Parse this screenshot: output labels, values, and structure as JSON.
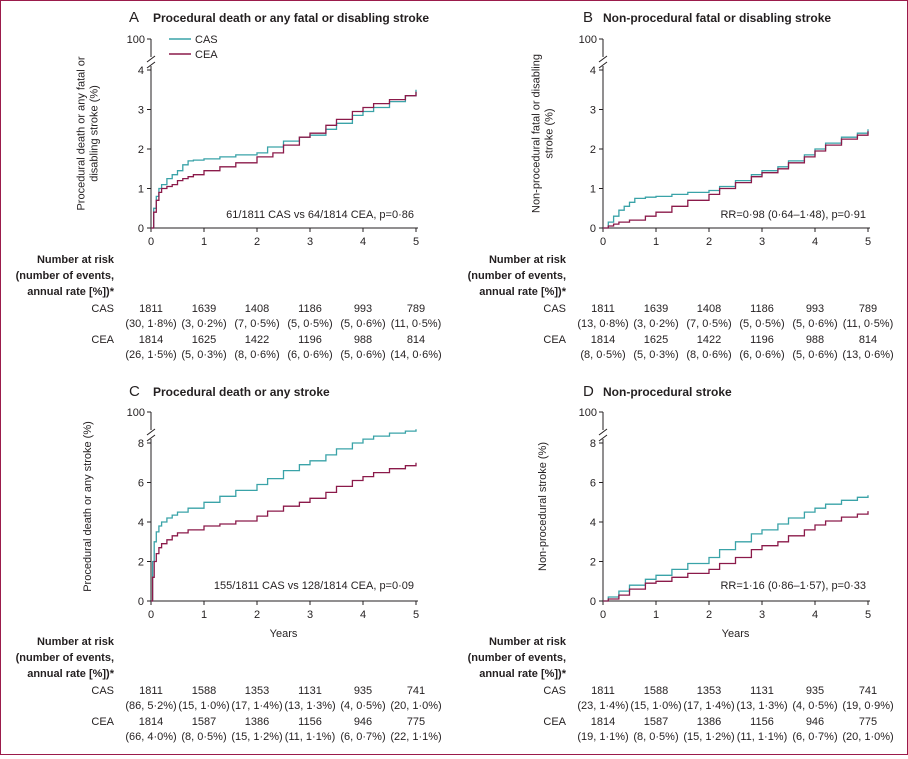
{
  "colors": {
    "CAS": "#3aa3a8",
    "CEA": "#8b1a4a",
    "border": "#9b1b4b"
  },
  "chart_data": [
    {
      "type": "line",
      "panel": "A",
      "title": "Procedural death or any fatal or disabling stroke",
      "ylabel": [
        "Procedural death or any fatal or",
        "disabling stroke (%)"
      ],
      "xlabel": "",
      "ylim": [
        0,
        4
      ],
      "yticks": [
        "0",
        "1",
        "2",
        "3",
        "4"
      ],
      "ybreak_label": "100",
      "xlim": [
        0,
        5
      ],
      "xticks": [
        "0",
        "1",
        "2",
        "3",
        "4",
        "5"
      ],
      "legend": [
        "CAS",
        "CEA"
      ],
      "annotation": "61/1811 CAS vs 64/1814 CEA, p=0·86",
      "series": [
        {
          "name": "CAS",
          "x": [
            0,
            0.05,
            0.1,
            0.15,
            0.2,
            0.3,
            0.4,
            0.5,
            0.6,
            0.7,
            0.8,
            1.0,
            1.3,
            1.6,
            2.0,
            2.2,
            2.5,
            2.8,
            3.0,
            3.3,
            3.5,
            3.8,
            4.0,
            4.2,
            4.5,
            4.8,
            5.0
          ],
          "y": [
            0,
            0.5,
            0.8,
            1.0,
            1.1,
            1.25,
            1.35,
            1.45,
            1.6,
            1.7,
            1.72,
            1.75,
            1.8,
            1.85,
            1.9,
            2.05,
            2.2,
            2.3,
            2.35,
            2.5,
            2.65,
            2.85,
            2.95,
            3.05,
            3.2,
            3.35,
            3.5
          ]
        },
        {
          "name": "CEA",
          "x": [
            0,
            0.05,
            0.1,
            0.15,
            0.2,
            0.3,
            0.4,
            0.5,
            0.6,
            0.7,
            0.8,
            1.0,
            1.3,
            1.6,
            2.0,
            2.3,
            2.5,
            2.8,
            3.0,
            3.3,
            3.5,
            3.8,
            4.0,
            4.2,
            4.5,
            4.8,
            5.0
          ],
          "y": [
            0,
            0.4,
            0.7,
            0.9,
            1.0,
            1.05,
            1.1,
            1.2,
            1.25,
            1.3,
            1.35,
            1.45,
            1.55,
            1.65,
            1.8,
            1.9,
            2.1,
            2.3,
            2.4,
            2.6,
            2.75,
            2.95,
            3.05,
            3.15,
            3.25,
            3.35,
            3.45
          ]
        }
      ],
      "risk": {
        "header": [
          "Number at risk",
          "(number of events,",
          "annual rate [%])*"
        ],
        "rows": [
          {
            "group": "CAS",
            "counts": [
              "1811",
              "1639",
              "1408",
              "1186",
              "993",
              "789"
            ],
            "events": [
              "(30, 1·8%)",
              "(3, 0·2%)",
              "(7, 0·5%)",
              "(5, 0·5%)",
              "(5, 0·6%)",
              "(11, 0·5%)"
            ]
          },
          {
            "group": "CEA",
            "counts": [
              "1814",
              "1625",
              "1422",
              "1196",
              "988",
              "814"
            ],
            "events": [
              "(26, 1·5%)",
              "(5, 0·3%)",
              "(8, 0·6%)",
              "(6, 0·6%)",
              "(5, 0·6%)",
              "(14, 0·6%)"
            ]
          }
        ]
      }
    },
    {
      "type": "line",
      "panel": "B",
      "title": "Non-procedural fatal or disabling stroke",
      "ylabel": [
        "Non-procedural fatal or disabling",
        "stroke (%)"
      ],
      "xlabel": "",
      "ylim": [
        0,
        4
      ],
      "yticks": [
        "0",
        "1",
        "2",
        "3",
        "4"
      ],
      "ybreak_label": "100",
      "xlim": [
        0,
        5
      ],
      "xticks": [
        "0",
        "1",
        "2",
        "3",
        "4",
        "5"
      ],
      "legend": [],
      "annotation": "RR=0·98 (0·64–1·48), p=0·91",
      "series": [
        {
          "name": "CAS",
          "x": [
            0,
            0.1,
            0.2,
            0.3,
            0.4,
            0.5,
            0.6,
            0.8,
            1.0,
            1.3,
            1.6,
            2.0,
            2.2,
            2.5,
            2.8,
            3.0,
            3.3,
            3.5,
            3.8,
            4.0,
            4.2,
            4.5,
            4.8,
            5.0
          ],
          "y": [
            0,
            0.15,
            0.3,
            0.45,
            0.55,
            0.65,
            0.75,
            0.78,
            0.8,
            0.85,
            0.9,
            0.95,
            1.05,
            1.2,
            1.35,
            1.45,
            1.55,
            1.7,
            1.85,
            2.0,
            2.15,
            2.3,
            2.4,
            2.5
          ]
        },
        {
          "name": "CEA",
          "x": [
            0,
            0.1,
            0.2,
            0.3,
            0.5,
            0.8,
            1.0,
            1.3,
            1.6,
            2.0,
            2.2,
            2.5,
            2.8,
            3.0,
            3.3,
            3.5,
            3.8,
            4.0,
            4.2,
            4.5,
            4.8,
            5.0
          ],
          "y": [
            0,
            0.05,
            0.1,
            0.15,
            0.2,
            0.3,
            0.4,
            0.55,
            0.7,
            0.85,
            1.0,
            1.15,
            1.3,
            1.4,
            1.5,
            1.65,
            1.8,
            1.95,
            2.1,
            2.25,
            2.35,
            2.45
          ]
        }
      ],
      "risk": {
        "header": [
          "Number at risk",
          "(number of events,",
          "annual rate [%])*"
        ],
        "rows": [
          {
            "group": "CAS",
            "counts": [
              "1811",
              "1639",
              "1408",
              "1186",
              "993",
              "789"
            ],
            "events": [
              "(13, 0·8%)",
              "(3, 0·2%)",
              "(7, 0·5%)",
              "(5, 0·5%)",
              "(5, 0·6%)",
              "(11, 0·5%)"
            ]
          },
          {
            "group": "CEA",
            "counts": [
              "1814",
              "1625",
              "1422",
              "1196",
              "988",
              "814"
            ],
            "events": [
              "(8, 0·5%)",
              "(5, 0·3%)",
              "(8, 0·6%)",
              "(6, 0·6%)",
              "(5, 0·6%)",
              "(13, 0·6%)"
            ]
          }
        ]
      }
    },
    {
      "type": "line",
      "panel": "C",
      "title": "Procedural death or any stroke",
      "ylabel": [
        "Procedural death or any stroke (%)"
      ],
      "xlabel": "Years",
      "ylim": [
        0,
        8
      ],
      "yticks": [
        "0",
        "2",
        "4",
        "6",
        "8"
      ],
      "ybreak_label": "100",
      "xlim": [
        0,
        5
      ],
      "xticks": [
        "0",
        "1",
        "2",
        "3",
        "4",
        "5"
      ],
      "legend": [],
      "annotation": "155/1811 CAS vs 128/1814 CEA, p=0·09",
      "series": [
        {
          "name": "CAS",
          "x": [
            0,
            0.03,
            0.06,
            0.1,
            0.15,
            0.2,
            0.3,
            0.4,
            0.5,
            0.7,
            1.0,
            1.3,
            1.6,
            2.0,
            2.2,
            2.5,
            2.8,
            3.0,
            3.3,
            3.5,
            3.8,
            4.0,
            4.2,
            4.5,
            4.8,
            5.0
          ],
          "y": [
            0,
            2.0,
            3.0,
            3.5,
            3.8,
            4.0,
            4.2,
            4.35,
            4.5,
            4.7,
            5.0,
            5.3,
            5.6,
            5.9,
            6.2,
            6.6,
            6.9,
            7.1,
            7.4,
            7.7,
            8.0,
            8.2,
            8.35,
            8.5,
            8.6,
            8.7
          ]
        },
        {
          "name": "CEA",
          "x": [
            0,
            0.03,
            0.06,
            0.1,
            0.15,
            0.2,
            0.3,
            0.4,
            0.5,
            0.7,
            1.0,
            1.3,
            1.6,
            2.0,
            2.2,
            2.5,
            2.8,
            3.0,
            3.3,
            3.5,
            3.8,
            4.0,
            4.2,
            4.5,
            4.8,
            5.0
          ],
          "y": [
            0,
            1.2,
            2.0,
            2.4,
            2.7,
            2.9,
            3.1,
            3.3,
            3.45,
            3.6,
            3.8,
            3.9,
            4.05,
            4.3,
            4.55,
            4.8,
            5.0,
            5.2,
            5.5,
            5.8,
            6.1,
            6.3,
            6.5,
            6.7,
            6.85,
            7.0
          ]
        }
      ],
      "risk": {
        "header": [
          "Number at risk",
          "(number of events,",
          "annual rate [%])*"
        ],
        "rows": [
          {
            "group": "CAS",
            "counts": [
              "1811",
              "1588",
              "1353",
              "1131",
              "935",
              "741"
            ],
            "events": [
              "(86, 5·2%)",
              "(15, 1·0%)",
              "(17, 1·4%)",
              "(13, 1·3%)",
              "(4, 0·5%)",
              "(20, 1·0%)"
            ]
          },
          {
            "group": "CEA",
            "counts": [
              "1814",
              "1587",
              "1386",
              "1156",
              "946",
              "775"
            ],
            "events": [
              "(66, 4·0%)",
              "(8, 0·5%)",
              "(15, 1·2%)",
              "(11, 1·1%)",
              "(6, 0·7%)",
              "(22, 1·1%)"
            ]
          }
        ]
      }
    },
    {
      "type": "line",
      "panel": "D",
      "title": "Non-procedural stroke",
      "ylabel": [
        "Non-procedural stroke (%)"
      ],
      "xlabel": "Years",
      "ylim": [
        0,
        8
      ],
      "yticks": [
        "0",
        "2",
        "4",
        "6",
        "8"
      ],
      "ybreak_label": "100",
      "xlim": [
        0,
        5
      ],
      "xticks": [
        "0",
        "1",
        "2",
        "3",
        "4",
        "5"
      ],
      "legend": [],
      "annotation": "RR=1·16 (0·86–1·57), p=0·33",
      "series": [
        {
          "name": "CAS",
          "x": [
            0,
            0.1,
            0.3,
            0.5,
            0.8,
            1.0,
            1.3,
            1.6,
            2.0,
            2.2,
            2.5,
            2.8,
            3.0,
            3.3,
            3.5,
            3.8,
            4.0,
            4.2,
            4.5,
            4.8,
            5.0
          ],
          "y": [
            0,
            0.2,
            0.5,
            0.8,
            1.1,
            1.3,
            1.6,
            1.9,
            2.2,
            2.6,
            3.0,
            3.4,
            3.6,
            3.9,
            4.2,
            4.5,
            4.7,
            4.9,
            5.1,
            5.25,
            5.35
          ]
        },
        {
          "name": "CEA",
          "x": [
            0,
            0.1,
            0.3,
            0.5,
            0.8,
            1.0,
            1.3,
            1.6,
            2.0,
            2.2,
            2.5,
            2.8,
            3.0,
            3.3,
            3.5,
            3.8,
            4.0,
            4.2,
            4.5,
            4.8,
            5.0
          ],
          "y": [
            0,
            0.1,
            0.3,
            0.6,
            0.9,
            1.0,
            1.2,
            1.4,
            1.6,
            1.9,
            2.2,
            2.6,
            2.8,
            3.0,
            3.3,
            3.6,
            3.85,
            4.05,
            4.25,
            4.4,
            4.55
          ]
        }
      ],
      "risk": {
        "header": [
          "Number at risk",
          "(number of events,",
          "annual rate [%])*"
        ],
        "rows": [
          {
            "group": "CAS",
            "counts": [
              "1811",
              "1588",
              "1353",
              "1131",
              "935",
              "741"
            ],
            "events": [
              "(23, 1·4%)",
              "(15, 1·0%)",
              "(17, 1·4%)",
              "(13, 1·3%)",
              "(4, 0·5%)",
              "(19, 0·9%)"
            ]
          },
          {
            "group": "CEA",
            "counts": [
              "1814",
              "1587",
              "1386",
              "1156",
              "946",
              "775"
            ],
            "events": [
              "(19, 1·1%)",
              "(8, 0·5%)",
              "(15, 1·2%)",
              "(11, 1·1%)",
              "(6, 0·7%)",
              "(20, 1·0%)"
            ]
          }
        ]
      }
    }
  ]
}
